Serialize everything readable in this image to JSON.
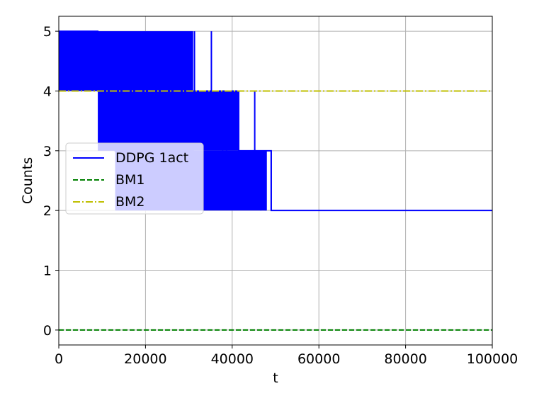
{
  "chart_data": {
    "type": "line",
    "title": "",
    "xlabel": "t",
    "ylabel": "Counts",
    "xlim": [
      0,
      100000
    ],
    "ylim": [
      -0.25,
      5.25
    ],
    "xticks": [
      0,
      20000,
      40000,
      60000,
      80000,
      100000
    ],
    "xtick_labels": [
      "0",
      "20000",
      "40000",
      "60000",
      "80000",
      "100000"
    ],
    "yticks": [
      0,
      1,
      2,
      3,
      4,
      5
    ],
    "ytick_labels": [
      "0",
      "1",
      "2",
      "3",
      "4",
      "5"
    ],
    "grid": true,
    "legend_position": "center-left",
    "series": [
      {
        "name": "DDPG 1act",
        "color": "#0000ff",
        "style": "solid",
        "bands": [
          {
            "x": [
              0,
              31000
            ],
            "y": [
              4,
              5
            ]
          },
          {
            "x": [
              9000,
              41500
            ],
            "y": [
              3,
              4
            ]
          },
          {
            "x": [
              13000,
              48000
            ],
            "y": [
              2,
              3
            ]
          }
        ],
        "spikes": [
          {
            "x": 300,
            "y": [
              4,
              5
            ]
          },
          {
            "x": 31300,
            "y": [
              4,
              5
            ]
          },
          {
            "x": 35200,
            "y": [
              4,
              5
            ]
          },
          {
            "x": 37800,
            "y": [
              3,
              4
            ]
          },
          {
            "x": 38700,
            "y": [
              3,
              4
            ]
          },
          {
            "x": 45200,
            "y": [
              3,
              4
            ]
          },
          {
            "x": 46600,
            "y": [
              2,
              3
            ]
          },
          {
            "x": 47700,
            "y": [
              2,
              3
            ]
          },
          {
            "x": 49000,
            "y": [
              2,
              3
            ]
          }
        ],
        "x": [
          0,
          9000,
          13000,
          31000,
          41500,
          49000,
          100000
        ],
        "y": [
          5,
          4,
          3,
          4,
          3,
          2,
          2
        ]
      },
      {
        "name": "BM1",
        "color": "#008000",
        "style": "dashed",
        "x": [
          0,
          100000
        ],
        "y": [
          0,
          0
        ]
      },
      {
        "name": "BM2",
        "color": "#bfbf00",
        "style": "dashdot",
        "x": [
          0,
          100000
        ],
        "y": [
          4,
          4
        ]
      }
    ]
  }
}
